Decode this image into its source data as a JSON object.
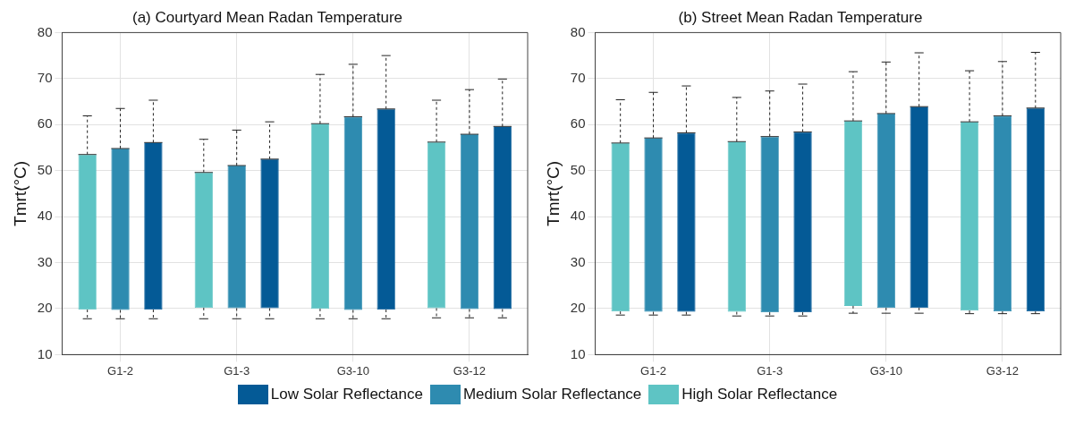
{
  "chart_data": [
    {
      "type": "box",
      "title": "(a) Courtyard Mean Radan Temperature",
      "ylabel": "Tmrt(°C)",
      "categories": [
        "G1-2",
        "G1-3",
        "G3-10",
        "G3-12"
      ],
      "ylim": [
        10,
        80
      ],
      "yticks": [
        10,
        20,
        30,
        40,
        50,
        60,
        70,
        80
      ],
      "grid": true,
      "legend": "bottom",
      "series": [
        {
          "name": "High Solar Reflectance",
          "color": "#5ec4c4",
          "boxes": [
            {
              "low": 17.8,
              "q1": 19.8,
              "median": 53.5,
              "q3": 53.5,
              "high": 61.9
            },
            {
              "low": 17.8,
              "q1": 20.2,
              "median": 49.6,
              "q3": 49.6,
              "high": 56.8
            },
            {
              "low": 17.8,
              "q1": 20.0,
              "median": 60.2,
              "q3": 60.2,
              "high": 70.9
            },
            {
              "low": 18.0,
              "q1": 20.1,
              "median": 56.2,
              "q3": 56.2,
              "high": 65.3
            }
          ]
        },
        {
          "name": "Medium Solar Reflectance",
          "color": "#2e8bb0",
          "boxes": [
            {
              "low": 17.8,
              "q1": 19.7,
              "median": 54.8,
              "q3": 54.8,
              "high": 63.5
            },
            {
              "low": 17.8,
              "q1": 20.1,
              "median": 51.1,
              "q3": 51.1,
              "high": 58.8
            },
            {
              "low": 17.8,
              "q1": 19.7,
              "median": 61.7,
              "q3": 61.7,
              "high": 73.1
            },
            {
              "low": 18.0,
              "q1": 19.9,
              "median": 57.9,
              "q3": 57.9,
              "high": 67.6
            }
          ]
        },
        {
          "name": "Low Solar Reflectance",
          "color": "#045a96",
          "boxes": [
            {
              "low": 17.8,
              "q1": 19.8,
              "median": 56.1,
              "q3": 56.1,
              "high": 65.3
            },
            {
              "low": 17.8,
              "q1": 20.1,
              "median": 52.5,
              "q3": 52.5,
              "high": 60.6
            },
            {
              "low": 17.8,
              "q1": 19.8,
              "median": 63.4,
              "q3": 63.4,
              "high": 75.0
            },
            {
              "low": 18.0,
              "q1": 19.9,
              "median": 59.6,
              "q3": 59.6,
              "high": 69.9
            }
          ]
        }
      ]
    },
    {
      "type": "box",
      "title": "(b) Street Mean Radan Temperature",
      "ylabel": "Tmrt(°C)",
      "categories": [
        "G1-2",
        "G1-3",
        "G3-10",
        "G3-12"
      ],
      "ylim": [
        10,
        80
      ],
      "yticks": [
        10,
        20,
        30,
        40,
        50,
        60,
        70,
        80
      ],
      "grid": true,
      "series": [
        {
          "color": "#5ec4c4",
          "boxes": [
            {
              "low": 18.6,
              "q1": 19.4,
              "median": 56.0,
              "q3": 56.0,
              "high": 65.4
            },
            {
              "low": 18.4,
              "q1": 19.3,
              "median": 56.3,
              "q3": 56.3,
              "high": 65.9
            },
            {
              "low": 19.0,
              "q1": 20.6,
              "median": 60.8,
              "q3": 60.8,
              "high": 71.5
            },
            {
              "low": 18.9,
              "q1": 19.6,
              "median": 60.6,
              "q3": 60.6,
              "high": 71.7
            }
          ]
        },
        {
          "color": "#2e8bb0",
          "boxes": [
            {
              "low": 18.6,
              "q1": 19.3,
              "median": 57.1,
              "q3": 57.1,
              "high": 67.0
            },
            {
              "low": 18.4,
              "q1": 19.2,
              "median": 57.4,
              "q3": 57.4,
              "high": 67.3
            },
            {
              "low": 19.0,
              "q1": 20.2,
              "median": 62.4,
              "q3": 62.4,
              "high": 73.6
            },
            {
              "low": 18.9,
              "q1": 19.4,
              "median": 61.9,
              "q3": 61.9,
              "high": 73.7
            }
          ]
        },
        {
          "color": "#045a96",
          "boxes": [
            {
              "low": 18.6,
              "q1": 19.3,
              "median": 58.2,
              "q3": 58.2,
              "high": 68.4
            },
            {
              "low": 18.4,
              "q1": 19.2,
              "median": 58.4,
              "q3": 58.4,
              "high": 68.8
            },
            {
              "low": 19.0,
              "q1": 20.2,
              "median": 63.9,
              "q3": 63.9,
              "high": 75.6
            },
            {
              "low": 18.9,
              "q1": 19.4,
              "median": 63.6,
              "q3": 63.6,
              "high": 75.7
            }
          ]
        }
      ]
    }
  ]
}
